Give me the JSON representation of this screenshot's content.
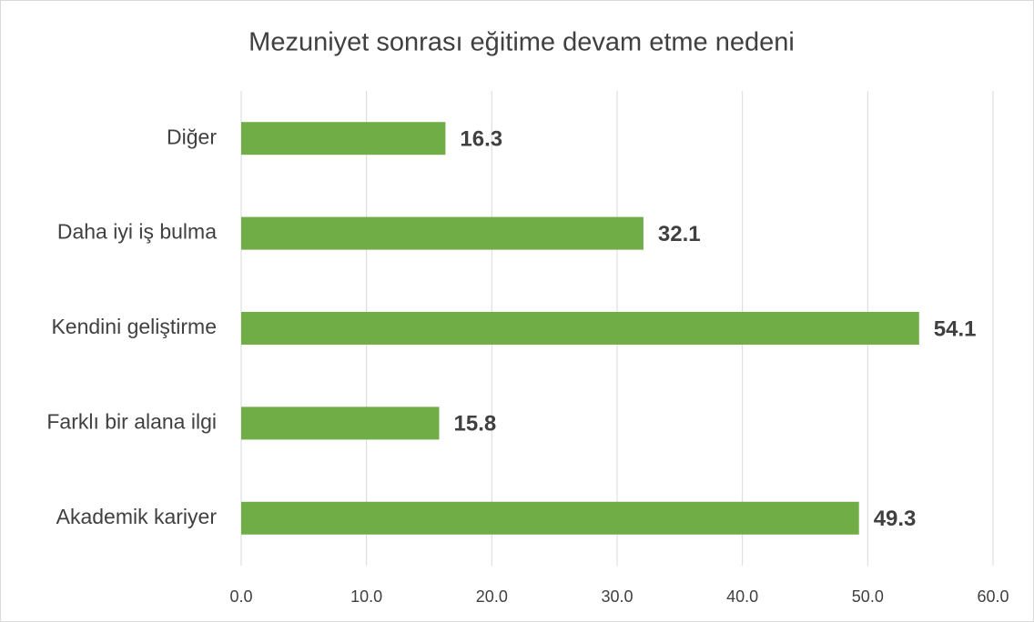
{
  "chart_data": {
    "type": "hbar",
    "title": "Mezuniyet sonrası eğitime devam etme nedeni",
    "categories": [
      "Diğer",
      "Daha iyi iş bulma",
      "Kendini geliştirme",
      "Farklı bir alana ilgi",
      "Akademik kariyer"
    ],
    "values": [
      16.3,
      32.1,
      54.1,
      15.8,
      49.3
    ],
    "color": "#70ad47",
    "xlim": [
      0,
      60
    ],
    "xticks": [
      {
        "value": 0,
        "label": "0.0"
      },
      {
        "value": 10,
        "label": "10.0"
      },
      {
        "value": 20,
        "label": "20.0"
      },
      {
        "value": 30,
        "label": "30.0"
      },
      {
        "value": 40,
        "label": "40.0"
      },
      {
        "value": 50,
        "label": "50.0"
      },
      {
        "value": 60,
        "label": "60.0"
      }
    ],
    "grid": true
  }
}
